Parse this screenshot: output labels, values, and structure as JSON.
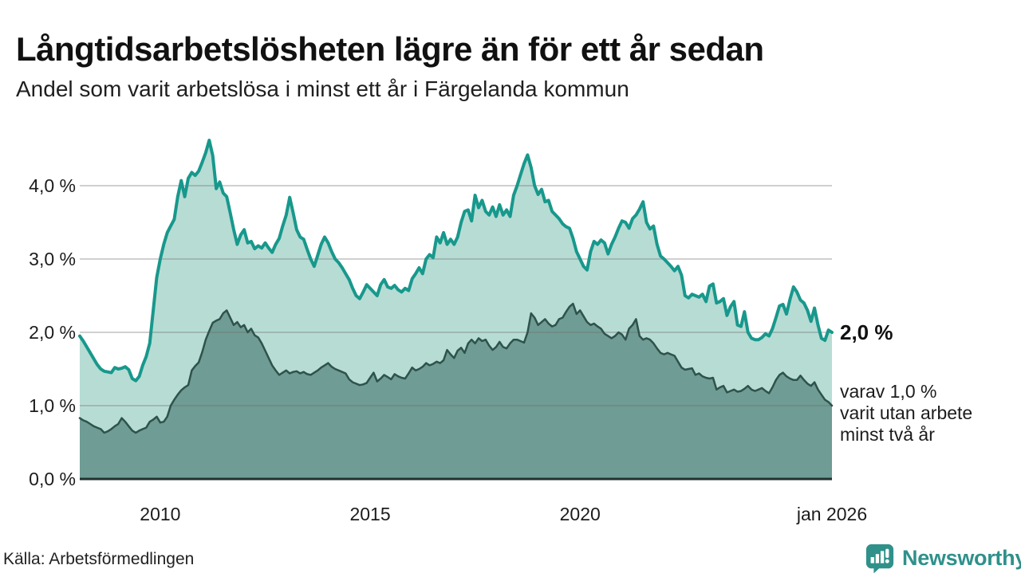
{
  "header": {
    "title": "Långtidsarbetslösheten lägre än för ett år sedan",
    "subtitle": "Andel som varit arbetslösa i minst ett år i Färgelanda kommun"
  },
  "annotations": {
    "latest_value": "2,0 %",
    "secondary_note": "varav 1,0 %\nvarit utan arbete\nminst två år"
  },
  "footer": {
    "source": "Källa: Arbetsförmedlingen",
    "brand": "Newsworthy"
  },
  "colors": {
    "line_primary": "#18988c",
    "fill_primary": "#b7dcd4",
    "line_secondary": "#2e524c",
    "fill_secondary": "#6f9c94",
    "gridline": "#6e6e6e",
    "axis": "#20312d",
    "brand_teal": "#2f918a",
    "text": "#1a1a1a"
  },
  "chart_data": {
    "type": "area",
    "title": "Andel som varit arbetslösa i minst ett år i Färgelanda kommun",
    "unit": "%",
    "x_start": "2008-02",
    "x_end": "2026-01",
    "frequency": "monthly",
    "grid": "horizontal",
    "ylim": [
      0,
      4.8
    ],
    "y_ticks": [
      {
        "label": "0,0 %",
        "v": 0
      },
      {
        "label": "1,0 %",
        "v": 1
      },
      {
        "label": "2,0 %",
        "v": 2
      },
      {
        "label": "3,0 %",
        "v": 3
      },
      {
        "label": "4,0 %",
        "v": 4
      }
    ],
    "x_ticks": [
      {
        "label": "2010",
        "t": 23
      },
      {
        "label": "2015",
        "t": 83
      },
      {
        "label": "2020",
        "t": 143
      },
      {
        "label": "jan 2026",
        "t": 215
      }
    ],
    "series": [
      {
        "name": "Arbetslösa minst ett år",
        "last_value_label": "2,0 %",
        "values": [
          1.95,
          1.88,
          1.8,
          1.72,
          1.64,
          1.56,
          1.5,
          1.47,
          1.46,
          1.45,
          1.52,
          1.5,
          1.51,
          1.53,
          1.49,
          1.37,
          1.34,
          1.4,
          1.55,
          1.67,
          1.85,
          2.3,
          2.75,
          3.0,
          3.2,
          3.36,
          3.45,
          3.54,
          3.85,
          4.07,
          3.85,
          4.1,
          4.18,
          4.14,
          4.2,
          4.32,
          4.45,
          4.62,
          4.41,
          3.96,
          4.05,
          3.9,
          3.85,
          3.63,
          3.4,
          3.2,
          3.33,
          3.4,
          3.22,
          3.24,
          3.14,
          3.18,
          3.15,
          3.22,
          3.15,
          3.09,
          3.2,
          3.28,
          3.45,
          3.6,
          3.84,
          3.63,
          3.4,
          3.3,
          3.27,
          3.13,
          3.0,
          2.9,
          3.05,
          3.2,
          3.3,
          3.22,
          3.1,
          3.0,
          2.95,
          2.88,
          2.8,
          2.72,
          2.6,
          2.5,
          2.46,
          2.55,
          2.65,
          2.6,
          2.55,
          2.5,
          2.65,
          2.72,
          2.62,
          2.6,
          2.64,
          2.58,
          2.55,
          2.6,
          2.57,
          2.73,
          2.8,
          2.88,
          2.8,
          3.0,
          3.06,
          3.02,
          3.3,
          3.22,
          3.36,
          3.2,
          3.27,
          3.2,
          3.3,
          3.5,
          3.65,
          3.67,
          3.52,
          3.87,
          3.7,
          3.8,
          3.65,
          3.6,
          3.71,
          3.58,
          3.74,
          3.6,
          3.67,
          3.58,
          3.87,
          4.0,
          4.15,
          4.3,
          4.42,
          4.25,
          4.0,
          3.88,
          3.95,
          3.78,
          3.8,
          3.65,
          3.6,
          3.55,
          3.48,
          3.44,
          3.42,
          3.28,
          3.1,
          3.0,
          2.9,
          2.85,
          3.1,
          3.24,
          3.2,
          3.26,
          3.22,
          3.07,
          3.2,
          3.3,
          3.42,
          3.52,
          3.5,
          3.42,
          3.55,
          3.6,
          3.68,
          3.78,
          3.5,
          3.41,
          3.45,
          3.2,
          3.04,
          3.0,
          2.95,
          2.9,
          2.84,
          2.9,
          2.78,
          2.5,
          2.47,
          2.52,
          2.5,
          2.48,
          2.52,
          2.42,
          2.63,
          2.66,
          2.4,
          2.42,
          2.46,
          2.23,
          2.35,
          2.42,
          2.1,
          2.08,
          2.28,
          2.0,
          1.92,
          1.9,
          1.9,
          1.93,
          1.98,
          1.95,
          2.05,
          2.2,
          2.36,
          2.38,
          2.25,
          2.45,
          2.62,
          2.55,
          2.44,
          2.4,
          2.3,
          2.15,
          2.33,
          2.1,
          1.92,
          1.89,
          2.03,
          2.0
        ]
      },
      {
        "name": "varav utan arbete minst två år",
        "last_value_label": "1,0 %",
        "values": [
          0.83,
          0.8,
          0.78,
          0.75,
          0.72,
          0.7,
          0.68,
          0.63,
          0.65,
          0.68,
          0.72,
          0.75,
          0.83,
          0.78,
          0.72,
          0.66,
          0.63,
          0.66,
          0.68,
          0.7,
          0.78,
          0.81,
          0.85,
          0.77,
          0.78,
          0.85,
          1.0,
          1.08,
          1.15,
          1.21,
          1.25,
          1.28,
          1.48,
          1.54,
          1.59,
          1.73,
          1.9,
          2.02,
          2.13,
          2.16,
          2.18,
          2.26,
          2.3,
          2.2,
          2.1,
          2.14,
          2.07,
          2.1,
          2.0,
          2.05,
          1.96,
          1.93,
          1.85,
          1.75,
          1.65,
          1.55,
          1.48,
          1.42,
          1.45,
          1.48,
          1.44,
          1.46,
          1.47,
          1.44,
          1.46,
          1.43,
          1.42,
          1.45,
          1.48,
          1.52,
          1.55,
          1.58,
          1.53,
          1.5,
          1.48,
          1.46,
          1.44,
          1.36,
          1.32,
          1.3,
          1.28,
          1.29,
          1.31,
          1.38,
          1.45,
          1.33,
          1.37,
          1.42,
          1.39,
          1.36,
          1.43,
          1.4,
          1.38,
          1.37,
          1.44,
          1.52,
          1.48,
          1.5,
          1.53,
          1.58,
          1.55,
          1.57,
          1.6,
          1.58,
          1.62,
          1.76,
          1.7,
          1.65,
          1.75,
          1.79,
          1.72,
          1.85,
          1.9,
          1.85,
          1.92,
          1.88,
          1.9,
          1.82,
          1.76,
          1.8,
          1.87,
          1.8,
          1.78,
          1.85,
          1.9,
          1.9,
          1.88,
          1.86,
          2.0,
          2.26,
          2.2,
          2.1,
          2.14,
          2.18,
          2.12,
          2.08,
          2.1,
          2.18,
          2.2,
          2.28,
          2.35,
          2.39,
          2.25,
          2.3,
          2.22,
          2.14,
          2.1,
          2.12,
          2.08,
          2.05,
          1.98,
          1.95,
          1.92,
          1.95,
          2.0,
          1.97,
          1.9,
          2.05,
          2.1,
          2.18,
          1.95,
          1.9,
          1.92,
          1.9,
          1.85,
          1.78,
          1.72,
          1.7,
          1.72,
          1.7,
          1.68,
          1.6,
          1.52,
          1.49,
          1.5,
          1.51,
          1.42,
          1.44,
          1.4,
          1.38,
          1.37,
          1.38,
          1.22,
          1.25,
          1.27,
          1.18,
          1.2,
          1.22,
          1.19,
          1.2,
          1.23,
          1.27,
          1.22,
          1.2,
          1.22,
          1.24,
          1.2,
          1.17,
          1.25,
          1.35,
          1.42,
          1.45,
          1.4,
          1.37,
          1.35,
          1.35,
          1.41,
          1.35,
          1.3,
          1.27,
          1.32,
          1.22,
          1.15,
          1.08,
          1.05,
          1.0
        ]
      }
    ]
  }
}
